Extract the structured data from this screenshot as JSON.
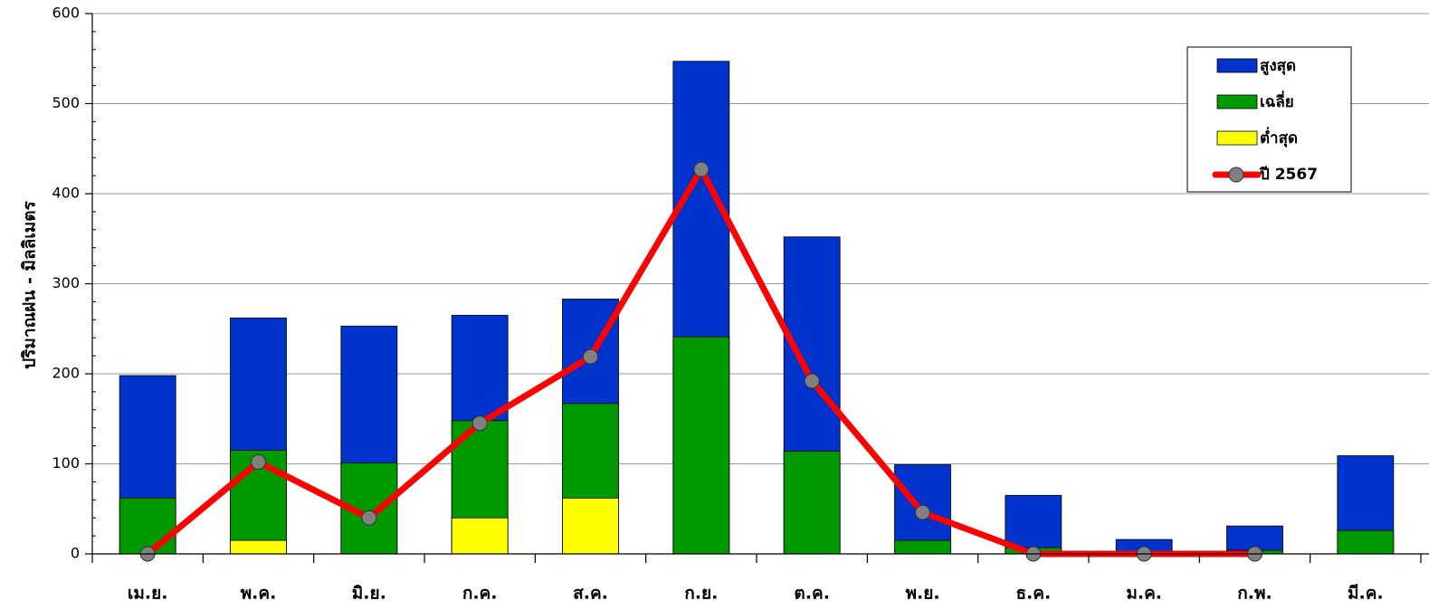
{
  "chart_data": {
    "type": "bar",
    "stacked": true,
    "title": "",
    "xlabel": "",
    "ylabel": "ปริมาณฝน  -  มิลลิเมตร",
    "ylim": [
      0,
      600
    ],
    "yticks": [
      0,
      100,
      200,
      300,
      400,
      500,
      600
    ],
    "grid": true,
    "legend_position": "top-right",
    "categories": [
      "เม.ย.",
      "พ.ค.",
      "มิ.ย.",
      "ก.ค.",
      "ส.ค.",
      "ก.ย.",
      "ต.ค.",
      "พ.ย.",
      "ธ.ค.",
      "ม.ค.",
      "ก.พ.",
      "มี.ค."
    ],
    "bar_series": [
      {
        "name": "สูงสุด",
        "color": "#0033CC",
        "values": [
          198,
          262,
          253,
          265,
          283,
          547,
          352,
          99,
          65,
          16,
          31,
          109
        ]
      },
      {
        "name": "เฉลี่ย",
        "color": "#009900",
        "values": [
          62,
          115,
          101,
          148,
          167,
          241,
          114,
          15,
          7,
          2,
          4,
          26
        ]
      },
      {
        "name": "ต่ำสุด",
        "color": "#FFFF00",
        "values": [
          0,
          15,
          0,
          40,
          62,
          0,
          0,
          0,
          0,
          0,
          0,
          0
        ]
      }
    ],
    "line_series": {
      "name": "ปี 2567",
      "color": "#FF0000",
      "marker_color": "#808080",
      "values": [
        0,
        102,
        40,
        145,
        219,
        427,
        192,
        46,
        0,
        0,
        0,
        null
      ]
    }
  }
}
